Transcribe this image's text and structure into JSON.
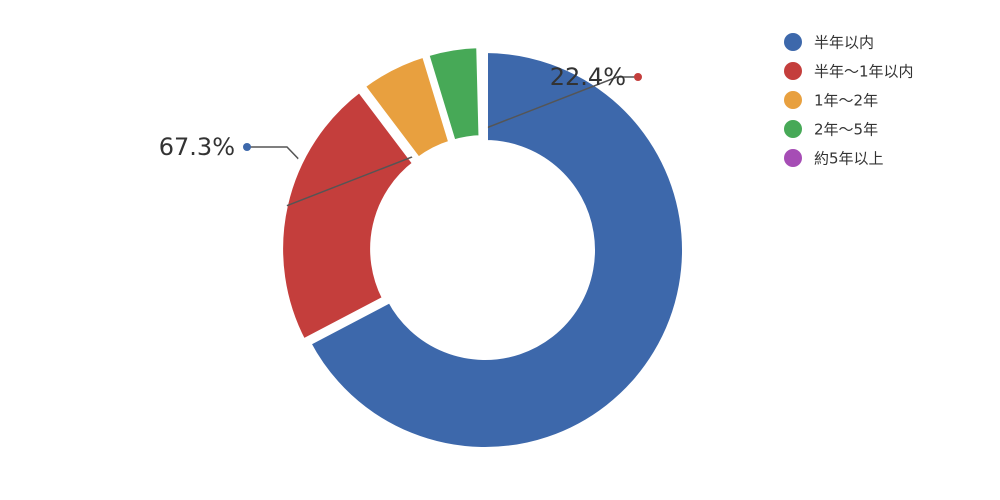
{
  "chart_data": {
    "type": "donut",
    "categories": [
      "半年以内",
      "半年～1年以内",
      "1年～2年",
      "2年～5年",
      "約5年以上"
    ],
    "values": [
      67.3,
      22.4,
      5.6,
      4.3,
      0.4
    ],
    "value_labels": [
      "67.3%",
      "22.4%",
      null,
      null,
      null
    ],
    "colors": [
      "#3d68ab",
      "#c43e3c",
      "#e8a03f",
      "#47a957",
      "#a64db5"
    ],
    "legend": "top-right"
  }
}
